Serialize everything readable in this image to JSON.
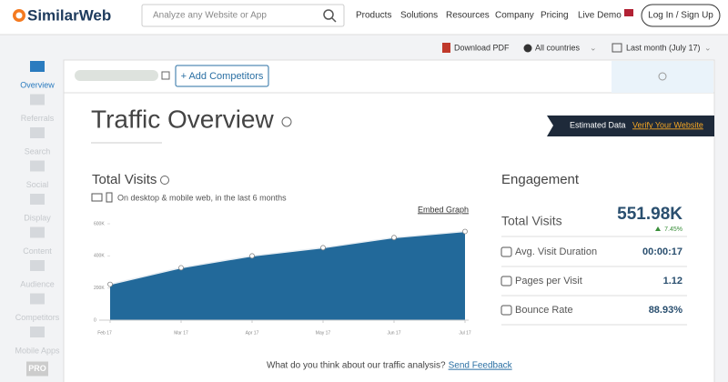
{
  "header": {
    "logo": "SimilarWeb",
    "search_placeholder": "Analyze any Website or App",
    "nav": [
      "Products",
      "Solutions",
      "Resources",
      "Company",
      "Pricing",
      "Live Demo"
    ],
    "login": "Log In / Sign Up"
  },
  "toolbar": {
    "download": "Download PDF",
    "country": "All countries",
    "period": "Last month (July 17)"
  },
  "sidebar": [
    "Overview",
    "Referrals",
    "Search",
    "Social",
    "Display",
    "Content",
    "Audience",
    "Competitors",
    "Mobile Apps",
    "PRO"
  ],
  "add_competitors": "+ Add Competitors",
  "title": "Traffic Overview",
  "banner": {
    "text": "Estimated Data",
    "link": "Verify Your Website"
  },
  "total_visits": {
    "heading": "Total Visits",
    "subtitle": "On desktop & mobile web, in the last 6 months",
    "embed": "Embed Graph"
  },
  "chart_data": {
    "type": "area",
    "categories": [
      "Feb 17",
      "Mar 17",
      "Apr 17",
      "May 17",
      "Jun 17",
      "Jul 17"
    ],
    "values": [
      223000,
      326000,
      400000,
      451000,
      514000,
      552000
    ],
    "color": "#22699a",
    "ylim": [
      0,
      600000
    ],
    "yticks": [
      0,
      {
        "value": 200000,
        "label": "200K"
      },
      {
        "value": 400000,
        "label": "400K"
      },
      {
        "value": 600000,
        "label": "600K"
      }
    ],
    "grid": false
  },
  "engagement": {
    "heading": "Engagement",
    "total_label": "Total Visits",
    "total_value": "551.98K",
    "change": "7.45%",
    "rows": [
      {
        "label": "Avg. Visit Duration",
        "value": "00:00:17"
      },
      {
        "label": "Pages per Visit",
        "value": "1.12"
      },
      {
        "label": "Bounce Rate",
        "value": "88.93%"
      }
    ]
  },
  "feedback": {
    "text": "What do you think about our traffic analysis?",
    "link": "Send Feedback"
  }
}
